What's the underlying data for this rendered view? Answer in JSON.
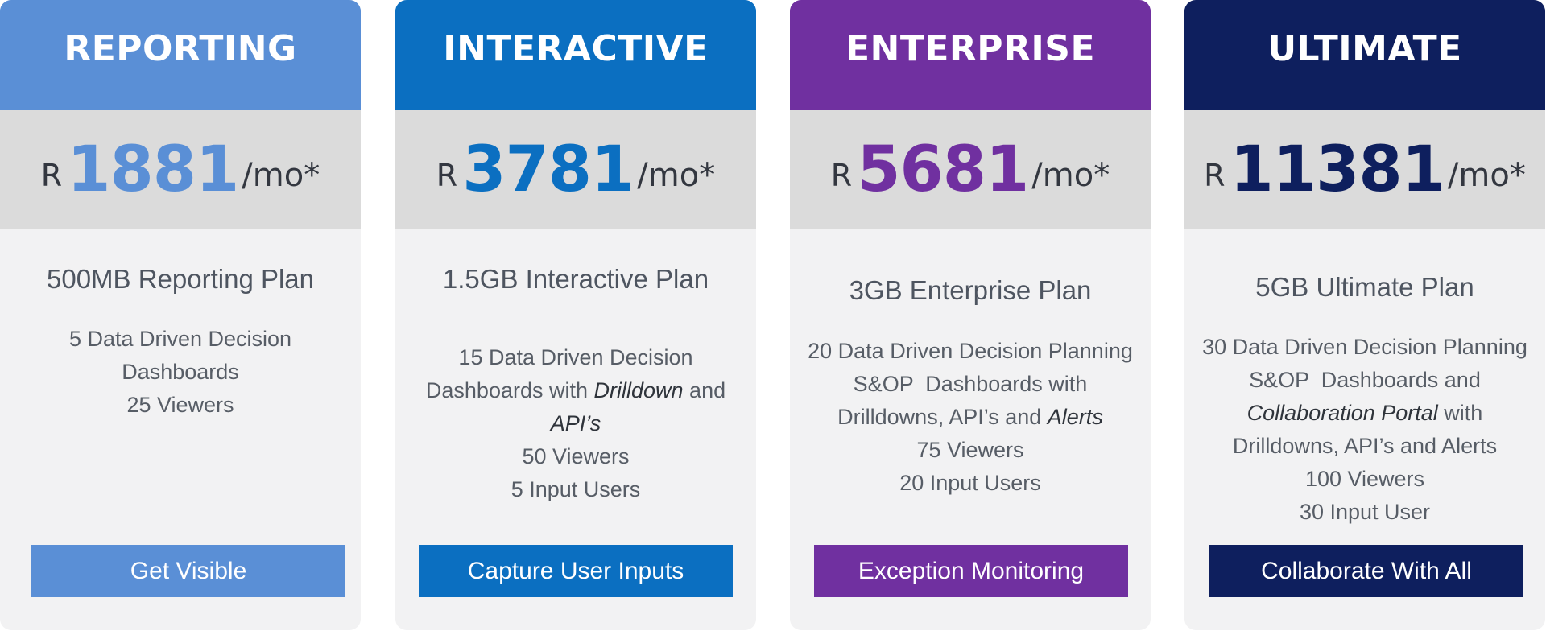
{
  "colors": {
    "reporting": "#5a8fd6",
    "interactive": "#0b6fc1",
    "enterprise": "#7030a0",
    "ultimate": "#0e1f5e",
    "price_band": "#dbdbdb",
    "card_body": "#f2f2f3"
  },
  "plans": [
    {
      "title": "REPORTING",
      "currency": "R",
      "price": "1881",
      "period": "/mo*",
      "plan_name": "500MB Reporting Plan",
      "features": [
        "5 Data Driven Decision",
        "Dashboards",
        "25 Viewers"
      ],
      "cta": "Get Visible"
    },
    {
      "title": "INTERACTIVE",
      "currency": "R",
      "price": "3781",
      "period": "/mo*",
      "plan_name": "1.5GB Interactive Plan",
      "features": [
        "15 Data Driven Decision",
        "Dashboards with ",
        "Drilldown",
        " and",
        "API’s",
        "50 Viewers",
        "5 Input Users"
      ],
      "cta": "Capture User Inputs"
    },
    {
      "title": "ENTERPRISE",
      "currency": "R",
      "price": "5681",
      "period": "/mo*",
      "plan_name": "3GB Enterprise Plan",
      "features": [
        "20 Data Driven Decision Planning",
        "S&OP  Dashboards with",
        "Drilldowns, API’s and ",
        "Alerts",
        "75 Viewers",
        "20 Input Users"
      ],
      "cta": "Exception Monitoring"
    },
    {
      "title": "ULTIMATE",
      "currency": "R",
      "price": "11381",
      "period": "/mo*",
      "plan_name": "5GB Ultimate Plan",
      "features": [
        "30 Data Driven Decision Planning",
        "S&OP  Dashboards and",
        "Collaboration Portal",
        " with",
        "Drilldowns, API’s and Alerts",
        "100 Viewers",
        "30 Input User"
      ],
      "cta": "Collaborate With All"
    }
  ]
}
